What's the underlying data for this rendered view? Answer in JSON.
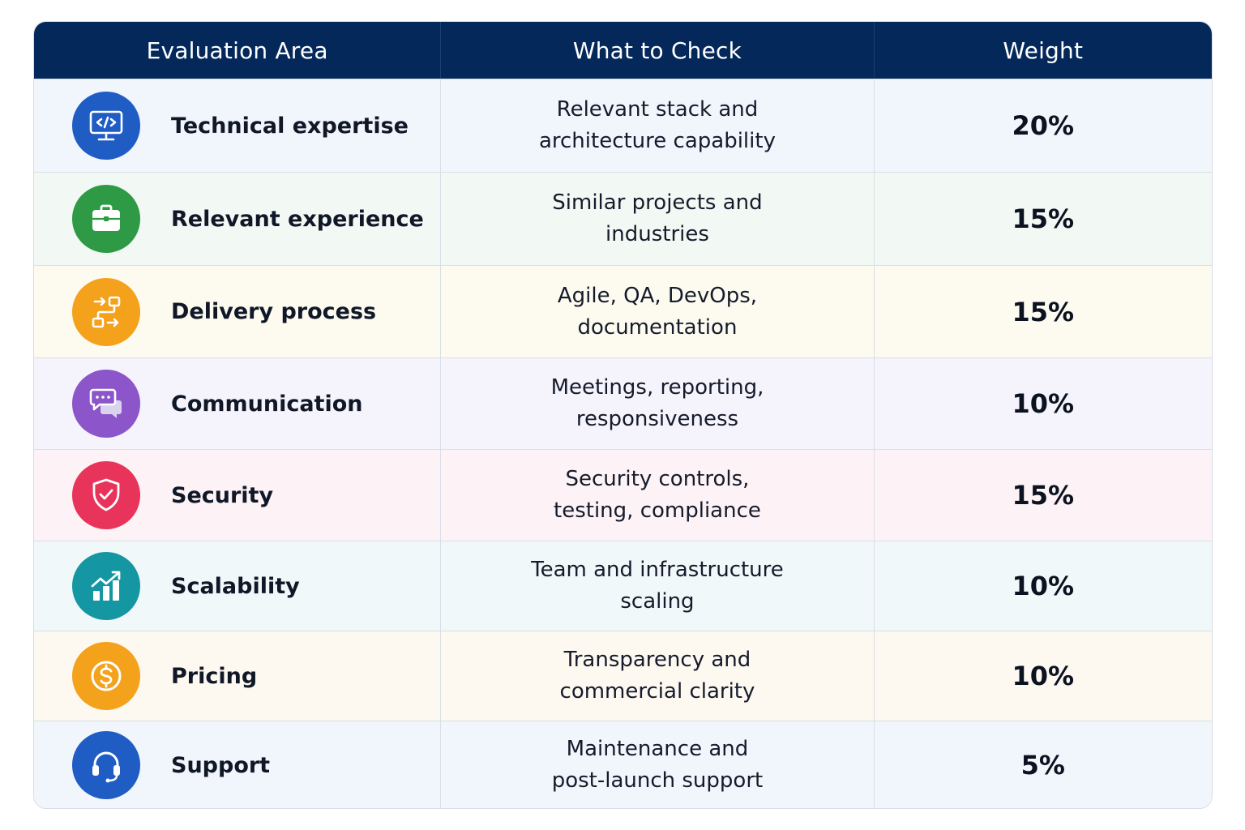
{
  "header": {
    "col_area": "Evaluation Area",
    "col_check": "What to Check",
    "col_weight": "Weight"
  },
  "rows": [
    {
      "area": "Technical expertise",
      "check_line1": "Relevant stack and",
      "check_line2": "architecture capability",
      "weight": "20%",
      "icon": "code-monitor-icon",
      "icon_color": "#1f5cc4",
      "row_bg": "#f1f5fc"
    },
    {
      "area": "Relevant experience",
      "check_line1": "Similar projects and",
      "check_line2": "industries",
      "weight": "15%",
      "icon": "briefcase-icon",
      "icon_color": "#2e9a45",
      "row_bg": "#f2f8f3"
    },
    {
      "area": "Delivery process",
      "check_line1": "Agile, QA, DevOps,",
      "check_line2": "documentation",
      "weight": "15%",
      "icon": "workflow-icon",
      "icon_color": "#f4a11c",
      "row_bg": "#fdfbf0"
    },
    {
      "area": "Communication",
      "check_line1": "Meetings, reporting,",
      "check_line2": "responsiveness",
      "weight": "10%",
      "icon": "chat-bubbles-icon",
      "icon_color": "#8c55c9",
      "row_bg": "#f5f3fb"
    },
    {
      "area": "Security",
      "check_line1": "Security controls,",
      "check_line2": "testing, compliance",
      "weight": "15%",
      "icon": "shield-check-icon",
      "icon_color": "#e8335a",
      "row_bg": "#fdf2f5"
    },
    {
      "area": "Scalability",
      "check_line1": "Team and infrastructure",
      "check_line2": "scaling",
      "weight": "10%",
      "icon": "growth-chart-icon",
      "icon_color": "#1596a3",
      "row_bg": "#f1f8f9"
    },
    {
      "area": "Pricing",
      "check_line1": "Transparency and",
      "check_line2": "commercial clarity",
      "weight": "10%",
      "icon": "dollar-coin-icon",
      "icon_color": "#f4a11c",
      "row_bg": "#fdf8f0"
    },
    {
      "area": "Support",
      "check_line1": "Maintenance and",
      "check_line2": "post-launch support",
      "weight": "5%",
      "icon": "headset-icon",
      "icon_color": "#1f5cc4",
      "row_bg": "#f1f5fc"
    }
  ]
}
